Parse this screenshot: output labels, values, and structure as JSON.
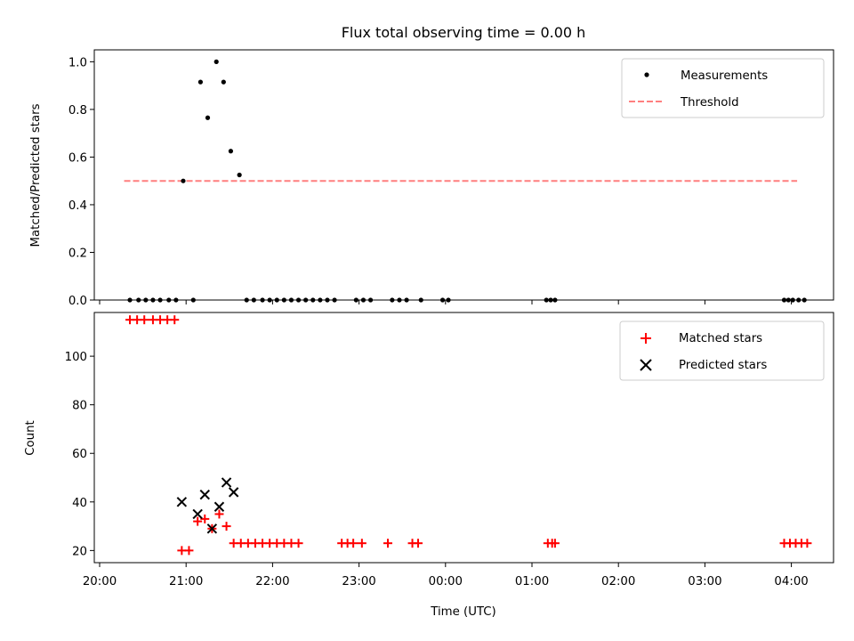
{
  "chart_data": [
    {
      "type": "scatter",
      "title": "Flux total observing time = 0.00 h",
      "xlabel": "",
      "ylabel": "Matched/Predicted stars",
      "ylim": [
        0,
        1.05
      ],
      "yticks": [
        "0.0",
        "0.2",
        "0.4",
        "0.6",
        "0.8",
        "1.0"
      ],
      "ytick_values": [
        0,
        0.2,
        0.4,
        0.6,
        0.8,
        1.0
      ],
      "legend_position": "top-right",
      "series": [
        {
          "name": "Measurements",
          "marker": "dot",
          "color": "#000000",
          "x": [
            "20:21",
            "20:27",
            "20:32",
            "20:37",
            "20:42",
            "20:48",
            "20:53",
            "20:58",
            "21:05",
            "21:10",
            "21:15",
            "21:21",
            "21:26",
            "21:31",
            "21:37",
            "21:42",
            "21:47",
            "21:53",
            "21:58",
            "22:03",
            "22:08",
            "22:13",
            "22:18",
            "22:23",
            "22:28",
            "22:33",
            "22:38",
            "22:43",
            "22:58",
            "23:03",
            "23:08",
            "23:23",
            "23:28",
            "23:33",
            "23:58",
            "23:43",
            "00:02",
            "01:10",
            "01:13",
            "01:16",
            "03:55",
            "03:58",
            "04:01",
            "04:05",
            "04:09"
          ],
          "y": [
            0,
            0,
            0,
            0,
            0,
            0,
            0,
            0.5,
            0,
            0.915,
            0.765,
            1.0,
            0.915,
            0.625,
            0.525,
            0,
            0,
            0,
            0,
            0,
            0,
            0,
            0,
            0,
            0,
            0,
            0,
            0,
            0,
            0,
            0,
            0,
            0,
            0,
            0,
            0,
            0,
            0,
            0,
            0,
            0,
            0,
            0,
            0,
            0
          ]
        },
        {
          "name": "Threshold",
          "marker": "dashed-line",
          "color": "#ff7f7f",
          "x": [
            "20:17",
            "04:04"
          ],
          "y": [
            0.5,
            0.5
          ]
        }
      ]
    },
    {
      "type": "scatter",
      "title": "",
      "xlabel": "Time (UTC)",
      "ylabel": "Count",
      "ylim": [
        15,
        118
      ],
      "yticks": [
        "20",
        "40",
        "60",
        "80",
        "100"
      ],
      "ytick_values": [
        20,
        40,
        60,
        80,
        100
      ],
      "xticks": [
        "20:00",
        "21:00",
        "22:00",
        "23:00",
        "00:00",
        "01:00",
        "02:00",
        "03:00",
        "04:00"
      ],
      "legend_position": "top-right",
      "series": [
        {
          "name": "Matched stars",
          "marker": "plus",
          "color": "#ff0000",
          "x": [
            "20:21",
            "20:26",
            "20:31",
            "20:37",
            "20:42",
            "20:47",
            "20:52",
            "20:57",
            "21:02",
            "21:08",
            "21:13",
            "21:18",
            "21:23",
            "21:28",
            "21:33",
            "21:38",
            "21:43",
            "21:48",
            "21:53",
            "21:58",
            "22:03",
            "22:08",
            "22:13",
            "22:18",
            "22:48",
            "22:52",
            "22:56",
            "23:02",
            "23:20",
            "23:37",
            "23:41",
            "01:11",
            "01:14",
            "01:16",
            "03:55",
            "03:59",
            "04:03",
            "04:07",
            "04:11"
          ],
          "y": [
            115,
            115,
            115,
            115,
            115,
            115,
            115,
            20,
            20,
            32,
            33,
            29,
            35,
            30,
            23,
            23,
            23,
            23,
            23,
            23,
            23,
            23,
            23,
            23,
            23,
            23,
            23,
            23,
            23,
            23,
            23,
            23,
            23,
            23,
            23,
            23,
            23,
            23,
            23
          ]
        },
        {
          "name": "Predicted stars",
          "marker": "x",
          "color": "#000000",
          "x": [
            "20:57",
            "21:08",
            "21:13",
            "21:18",
            "21:23",
            "21:28",
            "21:33"
          ],
          "y": [
            40,
            35,
            43,
            29,
            38,
            48,
            44
          ]
        }
      ]
    }
  ]
}
